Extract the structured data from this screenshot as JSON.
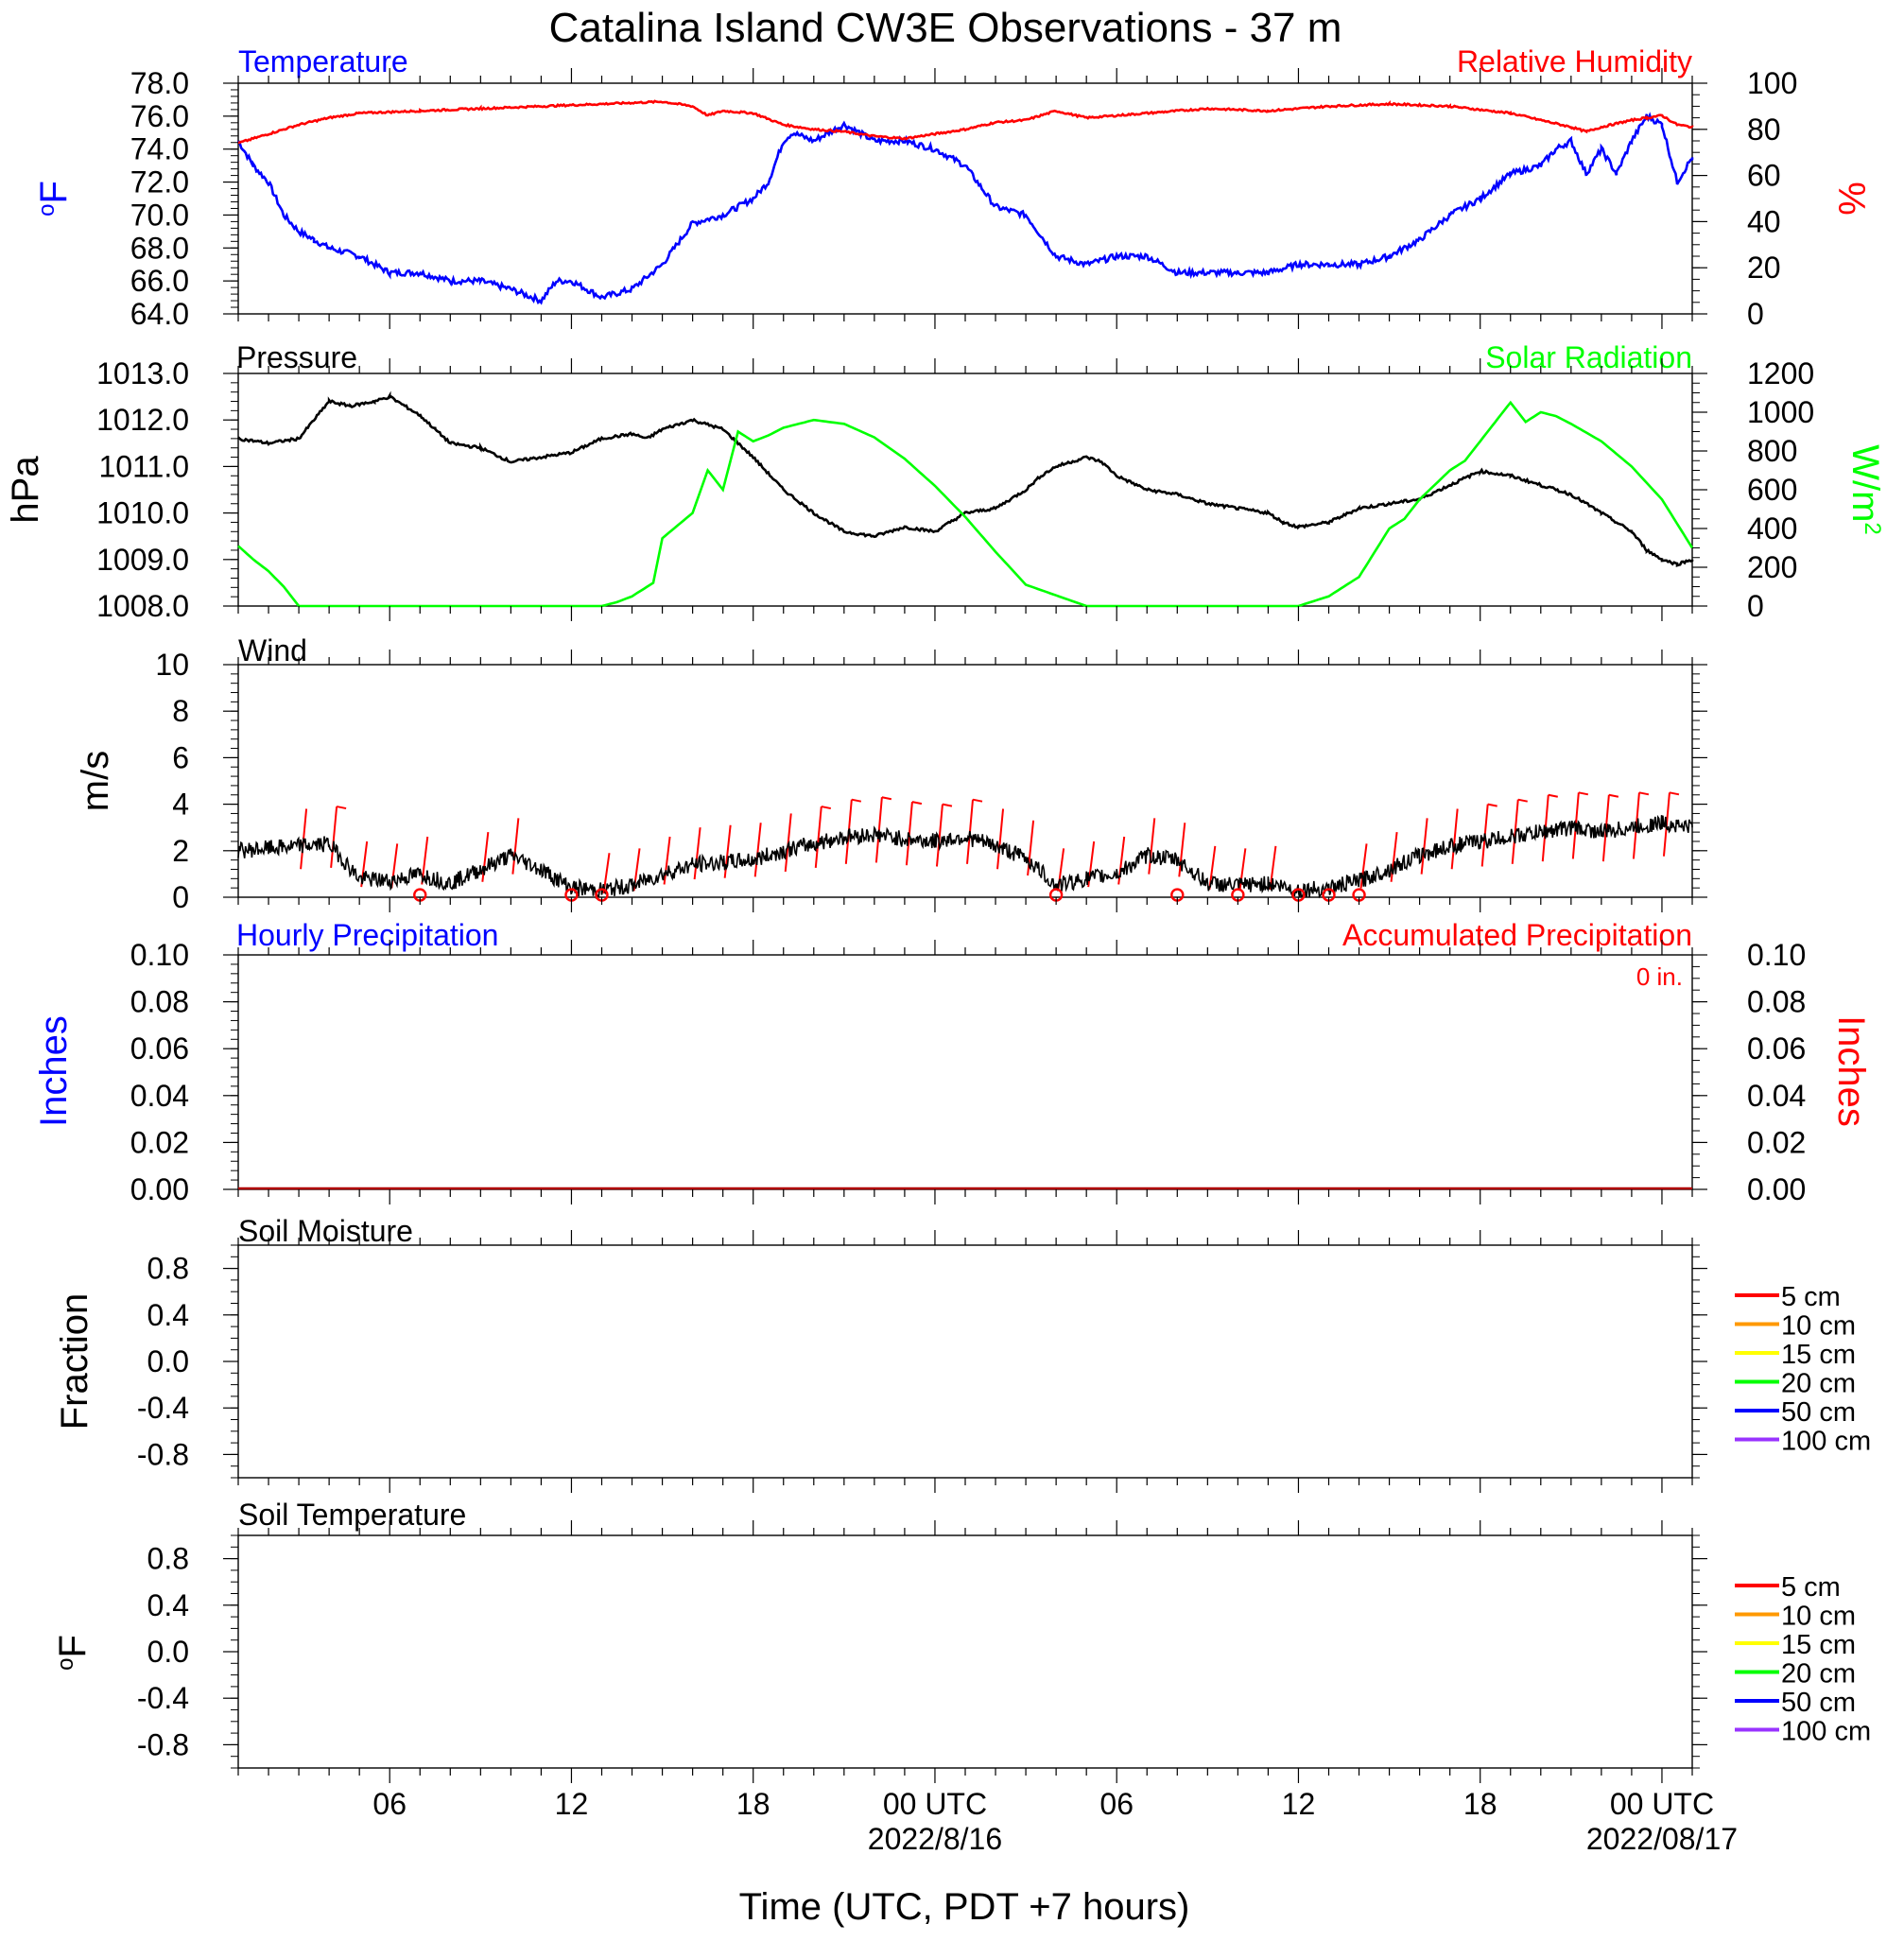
{
  "title": "Catalina Island CW3E Observations - 37 m",
  "xlabel": "Time (UTC, PDT +7 hours)",
  "x_ticks": [
    "06",
    "12",
    "18",
    "00 UTC",
    "06",
    "12",
    "18",
    "00 UTC"
  ],
  "x_dates": [
    "2022/8/16",
    "2022/08/17"
  ],
  "colors": {
    "temperature": "#0000ff",
    "humidity": "#ff0000",
    "pressure": "#000000",
    "solar": "#00ff00",
    "wind": "#000000",
    "barbs": "#ff0000",
    "hourly_precip": "#0000ff",
    "accum_precip": "#ff0000"
  },
  "panels": {
    "temp_rh": {
      "left_title": "Temperature",
      "right_title": "Relative Humidity",
      "left_unit": "oF",
      "right_unit": "%",
      "left_ticks": [
        "78.0",
        "76.0",
        "74.0",
        "72.0",
        "70.0",
        "68.0",
        "66.0",
        "64.0"
      ],
      "right_ticks": [
        "100",
        "80",
        "60",
        "40",
        "20",
        "0"
      ]
    },
    "pressure_solar": {
      "left_title": "Pressure",
      "right_title": "Solar Radiation",
      "left_unit": "hPa",
      "right_unit": "W/m2",
      "left_ticks": [
        "1013.0",
        "1012.0",
        "1011.0",
        "1010.0",
        "1009.0",
        "1008.0"
      ],
      "right_ticks": [
        "1200",
        "1000",
        "800",
        "600",
        "400",
        "200",
        "0"
      ]
    },
    "wind": {
      "left_title": "Wind",
      "left_unit": "m/s",
      "left_ticks": [
        "10",
        "8",
        "6",
        "4",
        "2",
        "0"
      ]
    },
    "precip": {
      "left_title": "Hourly Precipitation",
      "right_title": "Accumulated Precipitation",
      "accum_total": "0 in.",
      "left_unit": "Inches",
      "right_unit": "Inches",
      "left_ticks": [
        "0.10",
        "0.08",
        "0.06",
        "0.04",
        "0.02",
        "0.00"
      ],
      "right_ticks": [
        "0.10",
        "0.08",
        "0.06",
        "0.04",
        "0.02",
        "0.00"
      ]
    },
    "soil_moisture": {
      "left_title": "Soil Moisture",
      "left_unit": "Fraction",
      "left_ticks": [
        "0.8",
        "0.4",
        "0.0",
        "-0.4",
        "-0.8"
      ],
      "legend": [
        "5 cm",
        "10 cm",
        "15 cm",
        "20 cm",
        "50 cm",
        "100 cm"
      ]
    },
    "soil_temp": {
      "left_title": "Soil Temperature",
      "left_unit": "oF",
      "left_ticks": [
        "0.8",
        "0.4",
        "0.0",
        "-0.4",
        "-0.8"
      ],
      "legend": [
        "5 cm",
        "10 cm",
        "15 cm",
        "20 cm",
        "50 cm",
        "100 cm"
      ]
    }
  },
  "legend_colors": [
    "#ff0000",
    "#ff9900",
    "#ffff00",
    "#00ff00",
    "#0000ff",
    "#9933ff"
  ],
  "chart_data": [
    {
      "type": "line",
      "panel": "temp_rh",
      "x_unit": "hours since 2022-08-15 01:00 UTC",
      "xlim": [
        0,
        48
      ],
      "series": [
        {
          "name": "Temperature",
          "axis": "left",
          "ylim": [
            64,
            78
          ],
          "x": [
            0,
            0.5,
            1,
            1.5,
            2,
            2.5,
            3,
            4,
            5,
            6,
            7,
            8,
            9,
            10,
            10.5,
            11,
            12,
            13,
            14,
            15,
            16,
            17,
            17.5,
            18,
            18.3,
            19,
            20,
            21,
            22,
            23,
            24,
            25,
            26,
            27,
            28,
            29,
            30,
            31,
            32,
            33,
            34,
            35,
            36,
            37,
            38,
            39,
            40,
            41,
            42,
            43,
            43.5,
            44,
            44.5,
            45,
            45.5,
            46,
            46.5,
            47,
            47.5,
            48
          ],
          "values": [
            74.5,
            73.0,
            72.0,
            70.0,
            69.0,
            68.5,
            68.0,
            67.5,
            66.5,
            66.5,
            66.0,
            66.0,
            65.5,
            64.8,
            66.0,
            66.0,
            65.0,
            65.5,
            67.0,
            69.5,
            70.0,
            71.0,
            72.0,
            74.5,
            75.0,
            74.5,
            75.5,
            74.5,
            74.5,
            74.0,
            73.0,
            70.5,
            70.0,
            67.5,
            67.0,
            67.5,
            67.5,
            66.5,
            66.5,
            66.5,
            66.5,
            67.0,
            67.0,
            67.0,
            67.5,
            68.5,
            70.0,
            71.0,
            72.5,
            73.0,
            74.0,
            74.5,
            72.5,
            74.0,
            72.5,
            74.5,
            76.0,
            75.5,
            72.0,
            73.5
          ]
        },
        {
          "name": "Relative Humidity",
          "axis": "right",
          "ylim": [
            0,
            100
          ],
          "x": [
            0,
            1,
            2,
            3,
            4,
            6,
            8,
            10,
            12,
            14,
            15,
            15.5,
            16,
            17,
            18,
            19,
            20,
            21,
            22,
            23,
            24,
            25,
            26,
            27,
            28,
            30,
            32,
            34,
            36,
            38,
            40,
            42,
            44,
            44.5,
            45,
            46,
            46.5,
            47,
            47.5,
            48
          ],
          "values": [
            74,
            78,
            82,
            85,
            87,
            88,
            89,
            90,
            91,
            92,
            90,
            86,
            88,
            87,
            82,
            80,
            79,
            77,
            76,
            78,
            80,
            83,
            84,
            88,
            85,
            87,
            89,
            88,
            90,
            91,
            90,
            87,
            81,
            79,
            81,
            84,
            85,
            86,
            82,
            81
          ]
        }
      ]
    },
    {
      "type": "line",
      "panel": "pressure_solar",
      "x_unit": "hours since 2022-08-15 01:00 UTC",
      "xlim": [
        0,
        48
      ],
      "series": [
        {
          "name": "Pressure",
          "axis": "left",
          "ylim": [
            1008,
            1013
          ],
          "x": [
            0,
            1,
            2,
            3,
            3.7,
            4.5,
            5,
            6,
            6.5,
            7,
            8,
            9,
            10,
            11,
            12,
            13,
            13.5,
            14,
            15,
            16,
            16.5,
            17,
            18,
            19,
            20,
            21,
            21.5,
            22,
            23,
            24,
            25,
            26,
            26.5,
            27,
            28,
            28.5,
            29,
            30,
            31,
            32,
            33,
            34,
            34.5,
            35,
            36,
            37,
            38,
            39,
            40,
            41,
            42,
            43,
            44,
            45,
            46,
            46.5,
            47,
            47.5,
            48
          ],
          "values": [
            1011.6,
            1011.5,
            1011.6,
            1012.4,
            1012.3,
            1012.4,
            1012.5,
            1012.1,
            1011.8,
            1011.5,
            1011.4,
            1011.1,
            1011.2,
            1011.3,
            1011.6,
            1011.7,
            1011.6,
            1011.8,
            1012.0,
            1011.8,
            1011.5,
            1011.2,
            1010.5,
            1010.0,
            1009.6,
            1009.5,
            1009.6,
            1009.7,
            1009.6,
            1010.0,
            1010.1,
            1010.5,
            1010.8,
            1011.0,
            1011.2,
            1011.1,
            1010.8,
            1010.5,
            1010.4,
            1010.2,
            1010.1,
            1010.0,
            1009.8,
            1009.7,
            1009.8,
            1010.1,
            1010.2,
            1010.3,
            1010.6,
            1010.9,
            1010.8,
            1010.6,
            1010.4,
            1010.0,
            1009.6,
            1009.2,
            1009.0,
            1008.9,
            1009.0
          ]
        },
        {
          "name": "Solar Radiation",
          "axis": "right",
          "ylim": [
            0,
            1200
          ],
          "x": [
            0,
            0.5,
            1,
            1.5,
            2,
            5,
            10,
            12,
            12.5,
            13,
            13.7,
            14,
            15,
            15.5,
            16,
            16.5,
            17,
            17.5,
            18,
            19,
            20,
            21,
            22,
            23,
            24,
            25,
            26,
            28,
            31,
            33.5,
            35,
            36,
            37,
            38,
            38.5,
            39,
            40,
            40.5,
            41,
            41.5,
            42,
            42.5,
            43,
            43.5,
            44,
            45,
            46,
            47,
            48
          ],
          "values": [
            310,
            240,
            180,
            100,
            0,
            0,
            0,
            0,
            20,
            50,
            120,
            350,
            480,
            700,
            600,
            900,
            850,
            880,
            920,
            960,
            940,
            870,
            760,
            620,
            460,
            280,
            110,
            0,
            0,
            0,
            0,
            50,
            150,
            400,
            450,
            550,
            700,
            750,
            850,
            950,
            1050,
            950,
            1000,
            980,
            940,
            850,
            720,
            550,
            300
          ]
        }
      ]
    },
    {
      "type": "line",
      "panel": "wind",
      "x_unit": "hours since 2022-08-15 01:00 UTC",
      "xlim": [
        0,
        48
      ],
      "ylim": [
        0,
        10
      ],
      "series": [
        {
          "name": "Wind",
          "x": [
            0,
            1,
            2,
            3,
            4,
            5,
            6,
            7,
            8,
            9,
            10,
            11,
            12,
            13,
            14,
            15,
            16,
            17,
            18,
            19,
            20,
            21,
            22,
            23,
            24,
            25,
            26,
            27,
            28,
            29,
            30,
            31,
            32,
            33,
            34,
            35,
            36,
            37,
            38,
            39,
            40,
            41,
            42,
            43,
            44,
            45,
            46,
            47,
            48
          ],
          "values": [
            2.0,
            2.1,
            2.2,
            2.3,
            0.8,
            0.7,
            1.0,
            0.6,
            1.2,
            1.8,
            1.2,
            0.4,
            0.3,
            0.5,
            1.0,
            1.4,
            1.5,
            1.6,
            2.0,
            2.3,
            2.6,
            2.7,
            2.5,
            2.4,
            2.6,
            2.2,
            1.7,
            0.5,
            0.8,
            1.0,
            1.8,
            1.6,
            0.6,
            0.5,
            0.6,
            0.3,
            0.4,
            0.7,
            1.2,
            1.8,
            2.2,
            2.4,
            2.6,
            2.8,
            3.0,
            2.8,
            3.0,
            3.2,
            3.0
          ]
        }
      ],
      "barb_hours": [
        2,
        3,
        4,
        5,
        6,
        8,
        9,
        12,
        13,
        14,
        15,
        16,
        17,
        18,
        19,
        20,
        21,
        22,
        23,
        24,
        25,
        26,
        27,
        28,
        29,
        30,
        31,
        32,
        33,
        34,
        37,
        38,
        39,
        40,
        41,
        42,
        43,
        44,
        45,
        46,
        47
      ],
      "calm_hours": [
        6,
        11,
        12,
        27,
        31,
        33,
        35,
        36,
        37
      ]
    },
    {
      "type": "line",
      "panel": "precip",
      "x_unit": "hours since 2022-08-15 01:00 UTC",
      "xlim": [
        0,
        48
      ],
      "series": [
        {
          "name": "Hourly Precipitation",
          "axis": "left",
          "ylim": [
            0,
            0.1
          ],
          "x": [
            0,
            48
          ],
          "values": [
            0,
            0
          ]
        },
        {
          "name": "Accumulated Precipitation",
          "axis": "right",
          "ylim": [
            0,
            0.1
          ],
          "x": [
            0,
            48
          ],
          "values": [
            0,
            0
          ]
        }
      ]
    },
    {
      "type": "line",
      "panel": "soil_moisture",
      "ylim": [
        -1,
        1
      ],
      "series": []
    },
    {
      "type": "line",
      "panel": "soil_temp",
      "ylim": [
        -1,
        1
      ],
      "series": []
    }
  ]
}
